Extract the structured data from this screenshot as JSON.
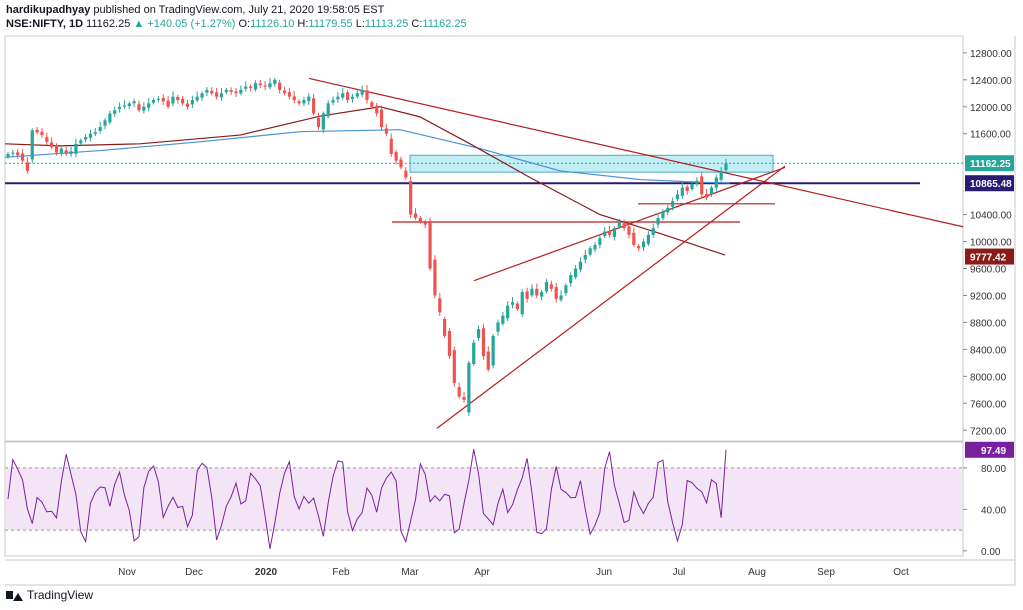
{
  "header": {
    "author": "hardikupadhyay",
    "published_text": "published on TradingView.com, July 21, 2020 19:58:05 EST",
    "symbol": "NSE:NIFTY, 1D",
    "last": "11162.25",
    "change": "+140.05 (+1.27%)",
    "o_label": "O:",
    "o_val": "11126.10",
    "h_label": "H:",
    "h_val": "11179.55",
    "l_label": "L:",
    "l_val": "11113.25",
    "c_label": "C:",
    "c_val": "11162.25"
  },
  "footer": {
    "brand": "TradingView"
  },
  "chart_data": {
    "type": "candlestick",
    "price_axis": {
      "ticks": [
        "12800.00",
        "12400.00",
        "12000.00",
        "11600.00",
        "10400.00",
        "10000.00",
        "9600.00",
        "9200.00",
        "8800.00",
        "8400.00",
        "8000.00",
        "7600.00",
        "7200.00"
      ],
      "ylim": [
        7100,
        13050
      ]
    },
    "price_labels": [
      {
        "value": 11162.25,
        "text": "11162.25",
        "color": "#26a69a"
      },
      {
        "value": 10865.48,
        "text": "10865.48",
        "color": "#2a1a73"
      },
      {
        "value": 9777.42,
        "text": "9777.42",
        "color": "#8b1a1a"
      }
    ],
    "x_axis": {
      "months": [
        "Nov",
        "Dec",
        "2020",
        "Feb",
        "Mar",
        "Apr",
        "Jun",
        "Jul",
        "Aug",
        "Sep",
        "Oct"
      ]
    },
    "approx_closes": [
      11300,
      11320,
      11280,
      11200,
      11050,
      11650,
      11620,
      11580,
      11480,
      11400,
      11320,
      11380,
      11300,
      11340,
      11450,
      11500,
      11550,
      11600,
      11620,
      11700,
      11800,
      11900,
      11950,
      12000,
      12020,
      12050,
      12080,
      11950,
      12000,
      12050,
      12100,
      12120,
      12080,
      12000,
      12150,
      12100,
      12050,
      12000,
      12100,
      12150,
      12200,
      12250,
      12200,
      12150,
      12200,
      12250,
      12220,
      12200,
      12250,
      12300,
      12280,
      12350,
      12320,
      12300,
      12350,
      12400,
      12250,
      12200,
      12150,
      12100,
      12050,
      12100,
      12150,
      11900,
      11700,
      11900,
      12050,
      12100,
      12150,
      12200,
      12100,
      12150,
      12200,
      12250,
      12100,
      12000,
      11900,
      11700,
      11600,
      11300,
      11200,
      11100,
      10950,
      10400,
      10350,
      10300,
      10250,
      9600,
      9200,
      8950,
      8600,
      8300,
      7900,
      7700,
      7650,
      8200,
      8500,
      8700,
      8300,
      8100,
      8600,
      8800,
      8900,
      9050,
      9100,
      9000,
      9250,
      9150,
      9300,
      9200,
      9250,
      9400,
      9300,
      9150,
      9200,
      9350,
      9500,
      9600,
      9700,
      9800,
      9900,
      9950,
      10050,
      10150,
      10100,
      10200,
      10300,
      10200,
      10100,
      9950,
      9900,
      10000,
      10100,
      10200,
      10350,
      10450,
      10500,
      10600,
      10700,
      10800,
      10750,
      10850,
      10900,
      10700,
      10650,
      10800,
      10950,
      11050,
      11160
    ],
    "rsi": {
      "levels": [
        "80.00",
        "40.00",
        "0.00"
      ],
      "ylim": [
        -5,
        105
      ],
      "band": [
        20,
        80
      ],
      "last": 97.49,
      "last_text": "97.49"
    },
    "overlay_colors": {
      "up": "#26a69a",
      "down": "#ef5350",
      "trend": "#b71c1c",
      "ma_short": "#8b1a1a",
      "ma_long": "#4a90d9",
      "hline": "#2a1a73",
      "zone": "#b2ebf2",
      "rsi": "#7b1fa2",
      "rsi_band": "#f3e5f5"
    }
  }
}
